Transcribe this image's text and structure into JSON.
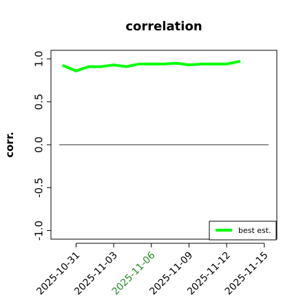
{
  "chart_data": {
    "type": "line",
    "title": "correlation",
    "xlabel": "",
    "ylabel": "corr.",
    "ylim": [
      -1.1,
      1.1
    ],
    "yticks": [
      -1.0,
      -0.5,
      0.0,
      0.5,
      1.0
    ],
    "ytick_labels": [
      "-1.0",
      "-0.5",
      "0.0",
      "0.5",
      "1.0"
    ],
    "xlim": [
      "2025-10-29",
      "2025-11-16"
    ],
    "xticks": [
      "2025-10-31",
      "2025-11-03",
      "2025-11-06",
      "2025-11-09",
      "2025-11-12",
      "2025-11-15"
    ],
    "xtick_labels": [
      "2025-10-31",
      "2025-11-03",
      "2025-11-06",
      "2025-11-09",
      "2025-11-12",
      "2025-11-15"
    ],
    "highlighted_xtick": "2025-11-06",
    "reference_line": {
      "y": 0.0,
      "x_from": "2025-10-29",
      "x_to": "2025-11-16"
    },
    "legend": {
      "position": "bottom-right",
      "entries": [
        "best est."
      ]
    },
    "grid": false,
    "series": [
      {
        "name": "best est.",
        "color": "#00ff00",
        "x": [
          "2025-10-30",
          "2025-10-31",
          "2025-11-01",
          "2025-11-02",
          "2025-11-03",
          "2025-11-04",
          "2025-11-05",
          "2025-11-06",
          "2025-11-07",
          "2025-11-08",
          "2025-11-09",
          "2025-11-10",
          "2025-11-11",
          "2025-11-12",
          "2025-11-13"
        ],
        "values": [
          0.92,
          0.86,
          0.91,
          0.91,
          0.93,
          0.91,
          0.94,
          0.94,
          0.94,
          0.95,
          0.93,
          0.94,
          0.94,
          0.94,
          0.97
        ]
      }
    ]
  },
  "colors": {
    "series": "#00ff00",
    "axis": "#000000",
    "reference_line": "#555555",
    "highlight_tick": "#228b22"
  }
}
